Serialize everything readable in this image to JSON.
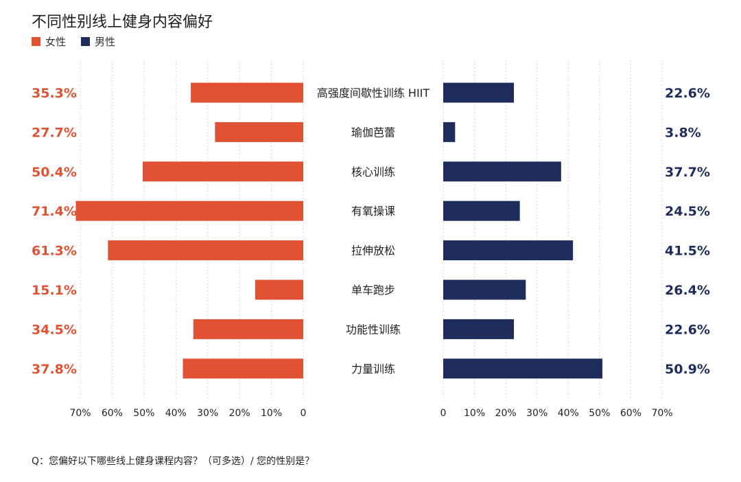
{
  "title": "不同性别线上健身内容偏好",
  "footnote": "Q：您偏好以下哪些线上健身课程内容？（可多选）/ 您的性别是？",
  "colors": {
    "female": "#e05233",
    "male": "#1f2d5c",
    "grid": "#c8c8c8"
  },
  "chart_data": {
    "type": "bar",
    "orientation": "horizontal-butterfly",
    "title": "不同性别线上健身内容偏好",
    "categories": [
      "高强度间歇性训练 HIIT",
      "瑜伽芭蕾",
      "核心训练",
      "有氧操课",
      "拉伸放松",
      "单车跑步",
      "功能性训练",
      "力量训练"
    ],
    "series": [
      {
        "name": "女性",
        "side": "left",
        "color": "#e05233",
        "values": [
          35.3,
          27.7,
          50.4,
          71.4,
          61.3,
          15.1,
          34.5,
          37.8
        ],
        "labels": [
          "35.3%",
          "27.7%",
          "50.4%",
          "71.4%",
          "61.3%",
          "15.1%",
          "34.5%",
          "37.8%"
        ]
      },
      {
        "name": "男性",
        "side": "right",
        "color": "#1f2d5c",
        "values": [
          22.6,
          3.8,
          37.7,
          24.5,
          41.5,
          26.4,
          22.6,
          50.9
        ],
        "labels": [
          "22.6%",
          "3.8%",
          "37.7%",
          "24.5%",
          "41.5%",
          "26.4%",
          "22.6%",
          "50.9%"
        ]
      }
    ],
    "xlim": [
      0,
      70
    ],
    "left_ticks": [
      "70%",
      "60%",
      "50%",
      "40%",
      "30%",
      "20%",
      "10%",
      "0"
    ],
    "right_ticks": [
      "0",
      "10%",
      "20%",
      "30%",
      "40%",
      "50%",
      "60%",
      "70%"
    ],
    "grid": "dotted-vertical",
    "legend_position": "top-left"
  }
}
